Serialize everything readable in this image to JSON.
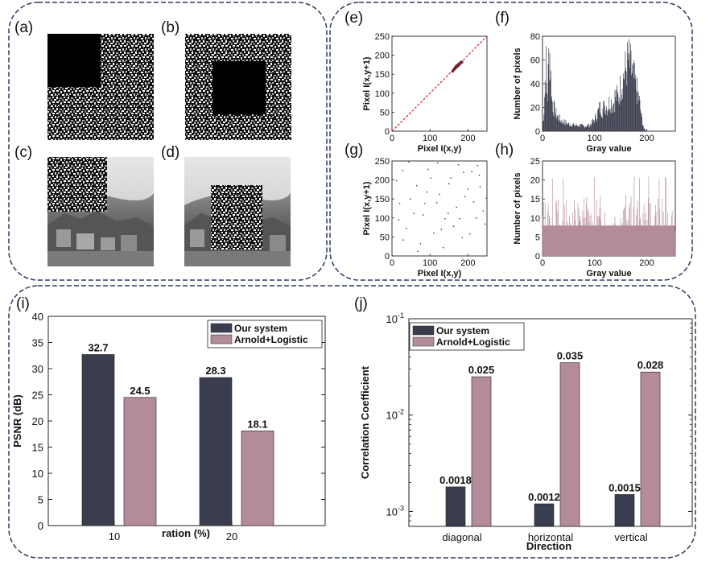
{
  "colors": {
    "dark": "#3a3d4d",
    "pink": "#b48b9a",
    "border": "#2c3a5c",
    "red": "#d8232a"
  },
  "panels": {
    "a": "(a)",
    "b": "(b)",
    "c": "(c)",
    "d": "(d)",
    "e": "(e)",
    "f": "(f)",
    "g": "(g)",
    "h": "(h)",
    "i": "(i)",
    "j": "(j)"
  },
  "chart_data": [
    {
      "id": "e",
      "type": "scatter",
      "xlabel": "Pixel I(x,y)",
      "ylabel": "Pixel I(x,y+1)",
      "xlim": [
        0,
        250
      ],
      "ylim": [
        0,
        250
      ],
      "xticks": [
        0,
        100,
        200
      ],
      "yticks": [
        0,
        50,
        100,
        150,
        200,
        250
      ],
      "points": [
        [
          160,
          158
        ],
        [
          163,
          163
        ],
        [
          166,
          165
        ],
        [
          169,
          169
        ],
        [
          172,
          171
        ],
        [
          175,
          176
        ],
        [
          178,
          177
        ],
        [
          181,
          181
        ],
        [
          184,
          182
        ],
        [
          170,
          172
        ],
        [
          174,
          173
        ],
        [
          167,
          168
        ],
        [
          176,
          175
        ],
        [
          180,
          179
        ],
        [
          171,
          170
        ]
      ],
      "diagonal_line": true
    },
    {
      "id": "f",
      "type": "bar",
      "xlabel": "Gray value",
      "ylabel": "Number of pixels",
      "xlim": [
        0,
        255
      ],
      "ylim": [
        0,
        80
      ],
      "xticks": [
        0,
        100,
        200
      ],
      "yticks": [
        0,
        20,
        40,
        60,
        80
      ],
      "profile": [
        [
          0,
          3
        ],
        [
          3,
          18
        ],
        [
          5,
          42
        ],
        [
          7,
          55
        ],
        [
          8,
          38
        ],
        [
          10,
          30
        ],
        [
          12,
          62
        ],
        [
          14,
          66
        ],
        [
          16,
          45
        ],
        [
          18,
          28
        ],
        [
          20,
          22
        ],
        [
          25,
          15
        ],
        [
          30,
          12
        ],
        [
          35,
          9
        ],
        [
          40,
          8
        ],
        [
          50,
          6
        ],
        [
          60,
          5
        ],
        [
          70,
          5
        ],
        [
          80,
          4
        ],
        [
          90,
          5
        ],
        [
          95,
          7
        ],
        [
          100,
          10
        ],
        [
          105,
          14
        ],
        [
          110,
          20
        ],
        [
          115,
          18
        ],
        [
          120,
          22
        ],
        [
          125,
          20
        ],
        [
          130,
          26
        ],
        [
          135,
          22
        ],
        [
          140,
          30
        ],
        [
          145,
          28
        ],
        [
          150,
          38
        ],
        [
          155,
          45
        ],
        [
          160,
          52
        ],
        [
          165,
          60
        ],
        [
          170,
          52
        ],
        [
          175,
          45
        ],
        [
          180,
          36
        ],
        [
          185,
          28
        ],
        [
          190,
          12
        ],
        [
          195,
          2
        ],
        [
          200,
          0
        ],
        [
          255,
          0
        ]
      ]
    },
    {
      "id": "g",
      "type": "scatter",
      "xlabel": "Pixel I(x,y)",
      "ylabel": "Pixel I(x,y+1)",
      "xlim": [
        0,
        250
      ],
      "ylim": [
        0,
        250
      ],
      "xticks": [
        0,
        100,
        200
      ],
      "yticks": [
        0,
        50,
        100,
        150,
        200,
        250
      ],
      "points": [
        [
          12,
          198
        ],
        [
          28,
          225
        ],
        [
          48,
          150
        ],
        [
          65,
          185
        ],
        [
          82,
          108
        ],
        [
          95,
          228
        ],
        [
          110,
          60
        ],
        [
          125,
          162
        ],
        [
          140,
          98
        ],
        [
          155,
          205
        ],
        [
          170,
          128
        ],
        [
          185,
          48
        ],
        [
          200,
          176
        ],
        [
          215,
          142
        ],
        [
          230,
          212
        ],
        [
          245,
          84
        ],
        [
          38,
          72
        ],
        [
          58,
          112
        ],
        [
          75,
          32
        ],
        [
          92,
          168
        ],
        [
          118,
          140
        ],
        [
          135,
          22
        ],
        [
          150,
          190
        ],
        [
          178,
          98
        ],
        [
          205,
          58
        ],
        [
          225,
          238
        ],
        [
          240,
          118
        ],
        [
          18,
          95
        ],
        [
          44,
          248
        ],
        [
          102,
          205
        ],
        [
          162,
          78
        ],
        [
          192,
          156
        ],
        [
          232,
          182
        ],
        [
          68,
          12
        ],
        [
          148,
          112
        ],
        [
          210,
          222
        ],
        [
          20,
          138
        ],
        [
          86,
          138
        ],
        [
          120,
          245
        ],
        [
          188,
          220
        ],
        [
          222,
          100
        ],
        [
          30,
          42
        ],
        [
          130,
          70
        ],
        [
          175,
          240
        ],
        [
          248,
          152
        ]
      ]
    },
    {
      "id": "h",
      "type": "bar",
      "xlabel": "Gray value",
      "ylabel": "Number of pixels",
      "xlim": [
        0,
        255
      ],
      "ylim": [
        0,
        25
      ],
      "xticks": [
        0,
        100,
        200
      ],
      "yticks": [
        0,
        5,
        10,
        15,
        20,
        25
      ],
      "base_level": 8,
      "spread": [
        2,
        22
      ]
    },
    {
      "id": "i",
      "type": "bar",
      "xlabel": "ration (%)",
      "ylabel": "PSNR (dB)",
      "ylim": [
        0,
        40
      ],
      "yticks": [
        0,
        5,
        10,
        15,
        20,
        25,
        30,
        35,
        40
      ],
      "categories": [
        "10",
        "20"
      ],
      "series": [
        {
          "name": "Our system",
          "values": [
            32.7,
            28.3
          ],
          "labels": [
            "32.7",
            "28.3"
          ]
        },
        {
          "name": "Arnold+Logistic",
          "values": [
            24.5,
            18.1
          ],
          "labels": [
            "24.5",
            "18.1"
          ]
        }
      ],
      "legend": "top-right"
    },
    {
      "id": "j",
      "type": "bar",
      "scale": "log",
      "xlabel": "Direction",
      "ylabel": "Correlation Coefficient",
      "ylim": [
        0.0007,
        0.1
      ],
      "yticks": [
        {
          "value": 0.001,
          "base": "10",
          "exp": "-3"
        },
        {
          "value": 0.01,
          "base": "10",
          "exp": "-2"
        },
        {
          "value": 0.1,
          "base": "10",
          "exp": "-1"
        }
      ],
      "categories": [
        "diagonal",
        "horizontal",
        "vertical"
      ],
      "series": [
        {
          "name": "Our system",
          "values": [
            0.0018,
            0.0012,
            0.0015
          ],
          "labels": [
            "0.0018",
            "0.0012",
            "0.0015"
          ]
        },
        {
          "name": "Arnold+Logistic",
          "values": [
            0.025,
            0.035,
            0.028
          ],
          "labels": [
            "0.025",
            "0.035",
            "0.028"
          ]
        }
      ],
      "legend": "top-left"
    }
  ]
}
